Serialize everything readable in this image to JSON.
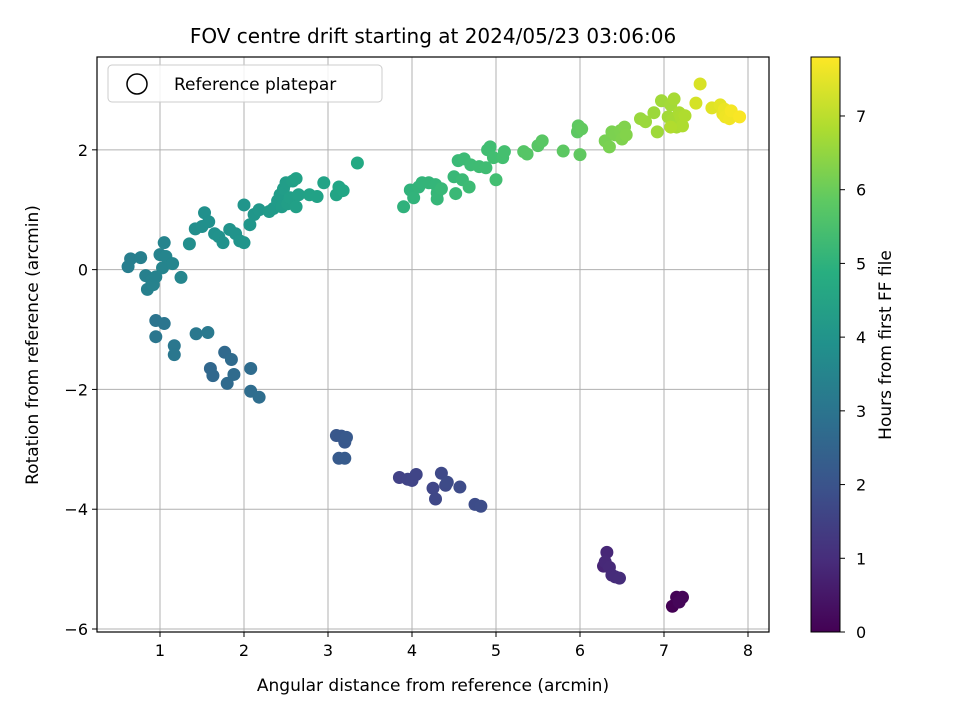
{
  "chart_data": {
    "type": "scatter",
    "title": "FOV centre drift starting at 2024/05/23 03:06:06",
    "xlabel": "Angular distance from reference (arcmin)",
    "ylabel": "Rotation from reference (arcmin)",
    "xlim": [
      0.25,
      8.25
    ],
    "ylim": [
      -6.05,
      3.55
    ],
    "xticks": [
      1,
      2,
      3,
      4,
      5,
      6,
      7,
      8
    ],
    "yticks": [
      -6,
      -4,
      -2,
      0,
      2
    ],
    "grid": true,
    "legend": {
      "position": "top-left",
      "entries": [
        "Reference platepar"
      ]
    },
    "colorbar": {
      "label": "Hours from first FF file",
      "colormap": "viridis",
      "range": [
        0,
        7.8
      ],
      "ticks": [
        0,
        1,
        2,
        3,
        4,
        5,
        6,
        7
      ]
    },
    "points": [
      {
        "x": 7.1,
        "y": -5.62,
        "c": 0.0
      },
      {
        "x": 7.15,
        "y": -5.47,
        "c": 0.05
      },
      {
        "x": 7.22,
        "y": -5.47,
        "c": 0.1
      },
      {
        "x": 7.18,
        "y": -5.55,
        "c": 0.12
      },
      {
        "x": 6.28,
        "y": -4.95,
        "c": 0.8
      },
      {
        "x": 6.32,
        "y": -4.72,
        "c": 0.85
      },
      {
        "x": 6.3,
        "y": -4.88,
        "c": 0.9
      },
      {
        "x": 6.35,
        "y": -4.97,
        "c": 0.92
      },
      {
        "x": 6.38,
        "y": -5.1,
        "c": 0.95
      },
      {
        "x": 6.42,
        "y": -5.13,
        "c": 0.98
      },
      {
        "x": 6.47,
        "y": -5.15,
        "c": 1.0
      },
      {
        "x": 3.85,
        "y": -3.47,
        "c": 1.5
      },
      {
        "x": 3.95,
        "y": -3.5,
        "c": 1.55
      },
      {
        "x": 4.0,
        "y": -3.52,
        "c": 1.58
      },
      {
        "x": 4.05,
        "y": -3.42,
        "c": 1.6
      },
      {
        "x": 4.25,
        "y": -3.65,
        "c": 1.65
      },
      {
        "x": 4.28,
        "y": -3.83,
        "c": 1.68
      },
      {
        "x": 4.35,
        "y": -3.4,
        "c": 1.7
      },
      {
        "x": 4.4,
        "y": -3.6,
        "c": 1.72
      },
      {
        "x": 4.42,
        "y": -3.55,
        "c": 1.75
      },
      {
        "x": 4.57,
        "y": -3.63,
        "c": 1.78
      },
      {
        "x": 4.75,
        "y": -3.92,
        "c": 1.8
      },
      {
        "x": 4.82,
        "y": -3.95,
        "c": 1.82
      },
      {
        "x": 3.1,
        "y": -2.77,
        "c": 2.1
      },
      {
        "x": 3.16,
        "y": -2.78,
        "c": 2.12
      },
      {
        "x": 3.2,
        "y": -2.88,
        "c": 2.15
      },
      {
        "x": 3.22,
        "y": -2.8,
        "c": 2.17
      },
      {
        "x": 3.13,
        "y": -3.15,
        "c": 2.2
      },
      {
        "x": 3.2,
        "y": -3.15,
        "c": 2.22
      },
      {
        "x": 1.6,
        "y": -1.65,
        "c": 2.6
      },
      {
        "x": 1.63,
        "y": -1.77,
        "c": 2.62
      },
      {
        "x": 1.77,
        "y": -1.38,
        "c": 2.65
      },
      {
        "x": 1.8,
        "y": -1.9,
        "c": 2.68
      },
      {
        "x": 1.85,
        "y": -1.5,
        "c": 2.7
      },
      {
        "x": 1.88,
        "y": -1.75,
        "c": 2.72
      },
      {
        "x": 2.08,
        "y": -1.65,
        "c": 2.75
      },
      {
        "x": 2.08,
        "y": -2.03,
        "c": 2.78
      },
      {
        "x": 2.18,
        "y": -2.13,
        "c": 2.8
      },
      {
        "x": 0.95,
        "y": -0.85,
        "c": 3.0
      },
      {
        "x": 1.05,
        "y": -0.9,
        "c": 3.02
      },
      {
        "x": 0.95,
        "y": -1.12,
        "c": 3.05
      },
      {
        "x": 1.17,
        "y": -1.27,
        "c": 3.08
      },
      {
        "x": 1.17,
        "y": -1.42,
        "c": 3.1
      },
      {
        "x": 1.43,
        "y": -1.07,
        "c": 3.12
      },
      {
        "x": 1.57,
        "y": -1.05,
        "c": 3.15
      },
      {
        "x": 0.62,
        "y": 0.05,
        "c": 3.3
      },
      {
        "x": 0.65,
        "y": 0.18,
        "c": 3.32
      },
      {
        "x": 0.77,
        "y": 0.2,
        "c": 3.34
      },
      {
        "x": 0.83,
        "y": -0.1,
        "c": 3.36
      },
      {
        "x": 0.85,
        "y": -0.33,
        "c": 3.38
      },
      {
        "x": 0.9,
        "y": -0.18,
        "c": 3.4
      },
      {
        "x": 0.92,
        "y": -0.25,
        "c": 3.42
      },
      {
        "x": 0.95,
        "y": -0.12,
        "c": 3.44
      },
      {
        "x": 1.0,
        "y": 0.25,
        "c": 3.46
      },
      {
        "x": 1.03,
        "y": 0.03,
        "c": 3.48
      },
      {
        "x": 1.05,
        "y": 0.45,
        "c": 3.5
      },
      {
        "x": 1.07,
        "y": 0.22,
        "c": 3.52
      },
      {
        "x": 1.15,
        "y": 0.1,
        "c": 3.54
      },
      {
        "x": 1.25,
        "y": -0.13,
        "c": 3.56
      },
      {
        "x": 1.35,
        "y": 0.43,
        "c": 3.8
      },
      {
        "x": 1.42,
        "y": 0.68,
        "c": 3.82
      },
      {
        "x": 1.5,
        "y": 0.72,
        "c": 3.84
      },
      {
        "x": 1.53,
        "y": 0.95,
        "c": 3.86
      },
      {
        "x": 1.58,
        "y": 0.8,
        "c": 3.88
      },
      {
        "x": 1.65,
        "y": 0.6,
        "c": 3.9
      },
      {
        "x": 1.7,
        "y": 0.55,
        "c": 3.92
      },
      {
        "x": 1.75,
        "y": 0.45,
        "c": 3.94
      },
      {
        "x": 1.83,
        "y": 0.67,
        "c": 3.96
      },
      {
        "x": 1.9,
        "y": 0.6,
        "c": 3.98
      },
      {
        "x": 1.95,
        "y": 0.48,
        "c": 4.0
      },
      {
        "x": 2.0,
        "y": 0.45,
        "c": 4.02
      },
      {
        "x": 2.0,
        "y": 1.08,
        "c": 4.04
      },
      {
        "x": 2.07,
        "y": 0.75,
        "c": 4.06
      },
      {
        "x": 2.12,
        "y": 0.92,
        "c": 4.08
      },
      {
        "x": 2.18,
        "y": 1.0,
        "c": 4.1
      },
      {
        "x": 2.3,
        "y": 0.97,
        "c": 4.2
      },
      {
        "x": 2.35,
        "y": 1.02,
        "c": 4.22
      },
      {
        "x": 2.4,
        "y": 1.15,
        "c": 4.24
      },
      {
        "x": 2.43,
        "y": 1.25,
        "c": 4.26
      },
      {
        "x": 2.45,
        "y": 1.05,
        "c": 4.28
      },
      {
        "x": 2.47,
        "y": 1.35,
        "c": 4.3
      },
      {
        "x": 2.5,
        "y": 1.45,
        "c": 4.32
      },
      {
        "x": 2.52,
        "y": 1.1,
        "c": 4.34
      },
      {
        "x": 2.55,
        "y": 1.2,
        "c": 4.36
      },
      {
        "x": 2.58,
        "y": 1.48,
        "c": 4.38
      },
      {
        "x": 2.62,
        "y": 1.05,
        "c": 4.4
      },
      {
        "x": 2.65,
        "y": 1.25,
        "c": 4.42
      },
      {
        "x": 2.62,
        "y": 1.52,
        "c": 4.44
      },
      {
        "x": 2.78,
        "y": 1.25,
        "c": 4.46
      },
      {
        "x": 2.87,
        "y": 1.22,
        "c": 4.48
      },
      {
        "x": 2.95,
        "y": 1.45,
        "c": 4.5
      },
      {
        "x": 3.1,
        "y": 1.25,
        "c": 4.55
      },
      {
        "x": 3.13,
        "y": 1.38,
        "c": 4.57
      },
      {
        "x": 3.18,
        "y": 1.32,
        "c": 4.6
      },
      {
        "x": 3.35,
        "y": 1.78,
        "c": 4.7
      },
      {
        "x": 3.9,
        "y": 1.05,
        "c": 5.0
      },
      {
        "x": 3.98,
        "y": 1.33,
        "c": 5.02
      },
      {
        "x": 4.02,
        "y": 1.2,
        "c": 5.04
      },
      {
        "x": 4.08,
        "y": 1.38,
        "c": 5.06
      },
      {
        "x": 4.12,
        "y": 1.45,
        "c": 5.08
      },
      {
        "x": 4.2,
        "y": 1.45,
        "c": 5.1
      },
      {
        "x": 4.28,
        "y": 1.42,
        "c": 5.12
      },
      {
        "x": 4.3,
        "y": 1.28,
        "c": 5.14
      },
      {
        "x": 4.3,
        "y": 1.18,
        "c": 5.16
      },
      {
        "x": 4.35,
        "y": 1.35,
        "c": 5.18
      },
      {
        "x": 4.5,
        "y": 1.55,
        "c": 5.2
      },
      {
        "x": 4.52,
        "y": 1.27,
        "c": 5.22
      },
      {
        "x": 4.55,
        "y": 1.82,
        "c": 5.24
      },
      {
        "x": 4.6,
        "y": 1.5,
        "c": 5.26
      },
      {
        "x": 4.62,
        "y": 1.85,
        "c": 5.28
      },
      {
        "x": 4.68,
        "y": 1.38,
        "c": 5.3
      },
      {
        "x": 4.7,
        "y": 1.75,
        "c": 5.32
      },
      {
        "x": 4.8,
        "y": 1.72,
        "c": 5.34
      },
      {
        "x": 4.88,
        "y": 1.7,
        "c": 5.36
      },
      {
        "x": 4.9,
        "y": 2.0,
        "c": 5.38
      },
      {
        "x": 4.93,
        "y": 2.05,
        "c": 5.4
      },
      {
        "x": 4.97,
        "y": 1.87,
        "c": 5.42
      },
      {
        "x": 5.0,
        "y": 1.5,
        "c": 5.44
      },
      {
        "x": 5.08,
        "y": 1.87,
        "c": 5.46
      },
      {
        "x": 5.1,
        "y": 1.97,
        "c": 5.48
      },
      {
        "x": 5.33,
        "y": 1.97,
        "c": 5.7
      },
      {
        "x": 5.37,
        "y": 1.93,
        "c": 5.72
      },
      {
        "x": 5.5,
        "y": 2.07,
        "c": 5.74
      },
      {
        "x": 5.55,
        "y": 2.15,
        "c": 5.76
      },
      {
        "x": 5.8,
        "y": 1.98,
        "c": 5.8
      },
      {
        "x": 5.97,
        "y": 2.3,
        "c": 5.82
      },
      {
        "x": 5.98,
        "y": 2.4,
        "c": 5.84
      },
      {
        "x": 6.0,
        "y": 1.92,
        "c": 5.86
      },
      {
        "x": 6.02,
        "y": 2.35,
        "c": 5.88
      },
      {
        "x": 6.3,
        "y": 2.15,
        "c": 6.2
      },
      {
        "x": 6.35,
        "y": 2.05,
        "c": 6.22
      },
      {
        "x": 6.38,
        "y": 2.3,
        "c": 6.24
      },
      {
        "x": 6.42,
        "y": 2.25,
        "c": 6.26
      },
      {
        "x": 6.48,
        "y": 2.32,
        "c": 6.28
      },
      {
        "x": 6.5,
        "y": 2.18,
        "c": 6.3
      },
      {
        "x": 6.53,
        "y": 2.38,
        "c": 6.32
      },
      {
        "x": 6.55,
        "y": 2.25,
        "c": 6.34
      },
      {
        "x": 6.72,
        "y": 2.52,
        "c": 6.6
      },
      {
        "x": 6.78,
        "y": 2.47,
        "c": 6.62
      },
      {
        "x": 6.88,
        "y": 2.62,
        "c": 6.64
      },
      {
        "x": 6.92,
        "y": 2.3,
        "c": 6.66
      },
      {
        "x": 6.97,
        "y": 2.82,
        "c": 6.68
      },
      {
        "x": 7.05,
        "y": 2.55,
        "c": 6.7
      },
      {
        "x": 7.08,
        "y": 2.75,
        "c": 6.72
      },
      {
        "x": 7.1,
        "y": 2.5,
        "c": 6.74
      },
      {
        "x": 7.12,
        "y": 2.85,
        "c": 6.76
      },
      {
        "x": 7.15,
        "y": 2.38,
        "c": 6.78
      },
      {
        "x": 7.18,
        "y": 2.62,
        "c": 6.8
      },
      {
        "x": 7.2,
        "y": 2.55,
        "c": 6.82
      },
      {
        "x": 7.22,
        "y": 2.4,
        "c": 6.84
      },
      {
        "x": 7.25,
        "y": 2.57,
        "c": 6.86
      },
      {
        "x": 7.08,
        "y": 2.38,
        "c": 6.88
      },
      {
        "x": 7.38,
        "y": 2.78,
        "c": 7.3
      },
      {
        "x": 7.43,
        "y": 3.1,
        "c": 7.35
      },
      {
        "x": 7.57,
        "y": 2.7,
        "c": 7.45
      },
      {
        "x": 7.67,
        "y": 2.75,
        "c": 7.5
      },
      {
        "x": 7.7,
        "y": 2.6,
        "c": 7.55
      },
      {
        "x": 7.72,
        "y": 2.68,
        "c": 7.58
      },
      {
        "x": 7.73,
        "y": 2.55,
        "c": 7.62
      },
      {
        "x": 7.78,
        "y": 2.52,
        "c": 7.65
      },
      {
        "x": 7.8,
        "y": 2.65,
        "c": 7.7
      },
      {
        "x": 7.9,
        "y": 2.55,
        "c": 7.75
      }
    ]
  }
}
